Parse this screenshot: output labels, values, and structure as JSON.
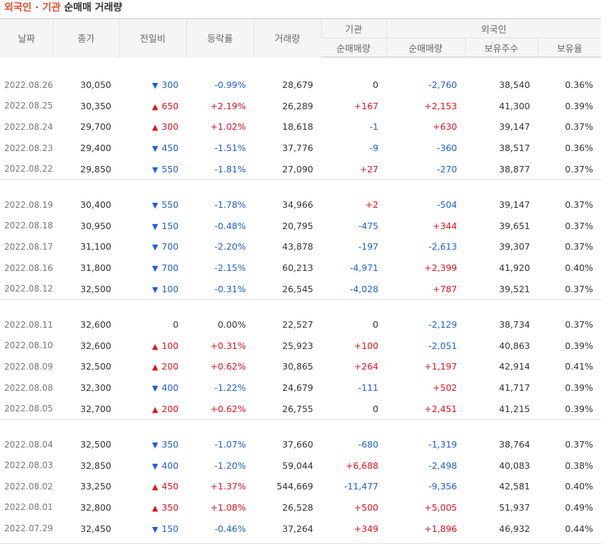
{
  "title": {
    "highlight": "외국인 · 기관",
    "rest": "순매매 거래량"
  },
  "headers": {
    "date": "날짜",
    "close": "종가",
    "change": "전일비",
    "rate": "등락률",
    "volume": "거래량",
    "inst_group": "기관",
    "inst_net": "순매매량",
    "foreign_group": "외국인",
    "foreign_net": "순매매량",
    "foreign_hold": "보유주수",
    "foreign_ratio": "보유율"
  },
  "colors": {
    "up": "#e0131b",
    "down": "#1f5fd8",
    "title_accent": "#e8482b"
  },
  "groups": [
    [
      {
        "date": "2022.08.26",
        "close": "30,050",
        "dir": "down",
        "change": "300",
        "rate": "-0.99%",
        "volume": "28,679",
        "inst": "0",
        "foreign": "-2,760",
        "hold": "38,540",
        "ratio": "0.36%"
      },
      {
        "date": "2022.08.25",
        "close": "30,350",
        "dir": "up",
        "change": "650",
        "rate": "+2.19%",
        "volume": "26,289",
        "inst": "+167",
        "foreign": "+2,153",
        "hold": "41,300",
        "ratio": "0.39%"
      },
      {
        "date": "2022.08.24",
        "close": "29,700",
        "dir": "up",
        "change": "300",
        "rate": "+1.02%",
        "volume": "18,618",
        "inst": "-1",
        "foreign": "+630",
        "hold": "39,147",
        "ratio": "0.37%"
      },
      {
        "date": "2022.08.23",
        "close": "29,400",
        "dir": "down",
        "change": "450",
        "rate": "-1.51%",
        "volume": "37,776",
        "inst": "-9",
        "foreign": "-360",
        "hold": "38,517",
        "ratio": "0.36%"
      },
      {
        "date": "2022.08.22",
        "close": "29,850",
        "dir": "down",
        "change": "550",
        "rate": "-1.81%",
        "volume": "27,090",
        "inst": "+27",
        "foreign": "-270",
        "hold": "38,877",
        "ratio": "0.37%"
      }
    ],
    [
      {
        "date": "2022.08.19",
        "close": "30,400",
        "dir": "down",
        "change": "550",
        "rate": "-1.78%",
        "volume": "34,966",
        "inst": "+2",
        "foreign": "-504",
        "hold": "39,147",
        "ratio": "0.37%"
      },
      {
        "date": "2022.08.18",
        "close": "30,950",
        "dir": "down",
        "change": "150",
        "rate": "-0.48%",
        "volume": "20,795",
        "inst": "-475",
        "foreign": "+344",
        "hold": "39,651",
        "ratio": "0.37%"
      },
      {
        "date": "2022.08.17",
        "close": "31,100",
        "dir": "down",
        "change": "700",
        "rate": "-2.20%",
        "volume": "43,878",
        "inst": "-197",
        "foreign": "-2,613",
        "hold": "39,307",
        "ratio": "0.37%"
      },
      {
        "date": "2022.08.16",
        "close": "31,800",
        "dir": "down",
        "change": "700",
        "rate": "-2.15%",
        "volume": "60,213",
        "inst": "-4,971",
        "foreign": "+2,399",
        "hold": "41,920",
        "ratio": "0.40%"
      },
      {
        "date": "2022.08.12",
        "close": "32,500",
        "dir": "down",
        "change": "100",
        "rate": "-0.31%",
        "volume": "26,545",
        "inst": "-4,028",
        "foreign": "+787",
        "hold": "39,521",
        "ratio": "0.37%"
      }
    ],
    [
      {
        "date": "2022.08.11",
        "close": "32,600",
        "dir": "none",
        "change": "0",
        "rate": "0.00%",
        "volume": "22,527",
        "inst": "0",
        "foreign": "-2,129",
        "hold": "38,734",
        "ratio": "0.37%"
      },
      {
        "date": "2022.08.10",
        "close": "32,600",
        "dir": "up",
        "change": "100",
        "rate": "+0.31%",
        "volume": "25,923",
        "inst": "+100",
        "foreign": "-2,051",
        "hold": "40,863",
        "ratio": "0.39%"
      },
      {
        "date": "2022.08.09",
        "close": "32,500",
        "dir": "up",
        "change": "200",
        "rate": "+0.62%",
        "volume": "30,865",
        "inst": "+264",
        "foreign": "+1,197",
        "hold": "42,914",
        "ratio": "0.41%"
      },
      {
        "date": "2022.08.08",
        "close": "32,300",
        "dir": "down",
        "change": "400",
        "rate": "-1.22%",
        "volume": "24,679",
        "inst": "-111",
        "foreign": "+502",
        "hold": "41,717",
        "ratio": "0.39%"
      },
      {
        "date": "2022.08.05",
        "close": "32,700",
        "dir": "up",
        "change": "200",
        "rate": "+0.62%",
        "volume": "26,755",
        "inst": "0",
        "foreign": "+2,451",
        "hold": "41,215",
        "ratio": "0.39%"
      }
    ],
    [
      {
        "date": "2022.08.04",
        "close": "32,500",
        "dir": "down",
        "change": "350",
        "rate": "-1.07%",
        "volume": "37,660",
        "inst": "-680",
        "foreign": "-1,319",
        "hold": "38,764",
        "ratio": "0.37%"
      },
      {
        "date": "2022.08.03",
        "close": "32,850",
        "dir": "down",
        "change": "400",
        "rate": "-1.20%",
        "volume": "59,044",
        "inst": "+6,688",
        "foreign": "-2,498",
        "hold": "40,083",
        "ratio": "0.38%"
      },
      {
        "date": "2022.08.02",
        "close": "33,250",
        "dir": "up",
        "change": "450",
        "rate": "+1.37%",
        "volume": "544,669",
        "inst": "-11,477",
        "foreign": "-9,356",
        "hold": "42,581",
        "ratio": "0.40%"
      },
      {
        "date": "2022.08.01",
        "close": "32,800",
        "dir": "up",
        "change": "350",
        "rate": "+1.08%",
        "volume": "26,528",
        "inst": "+500",
        "foreign": "+5,005",
        "hold": "51,937",
        "ratio": "0.49%"
      },
      {
        "date": "2022.07.29",
        "close": "32,450",
        "dir": "down",
        "change": "150",
        "rate": "-0.46%",
        "volume": "37,264",
        "inst": "+349",
        "foreign": "+1,896",
        "hold": "46,932",
        "ratio": "0.44%"
      }
    ]
  ]
}
